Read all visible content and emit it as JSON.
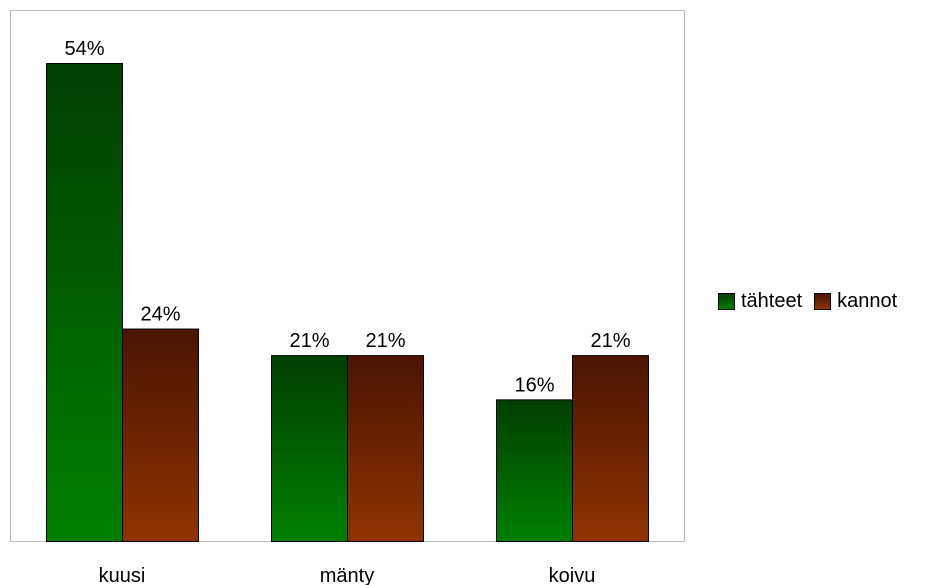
{
  "chart_data": {
    "type": "bar",
    "categories": [
      "kuusi",
      "mänty",
      "koivu"
    ],
    "series": [
      {
        "name": "tähteet",
        "values": [
          54,
          21,
          16
        ],
        "labels": [
          "54%",
          "21%",
          "16%"
        ],
        "color_top": "#003f00",
        "color_bottom": "#008000"
      },
      {
        "name": "kannot",
        "values": [
          24,
          21,
          21
        ],
        "labels": [
          "24%",
          "21%",
          "21%"
        ],
        "color_top": "#4a1400",
        "color_bottom": "#8f3300"
      }
    ],
    "title": "",
    "xlabel": "",
    "ylabel": "",
    "ylim": [
      0,
      60
    ],
    "unit": "%",
    "grid": false,
    "legend_position": "right"
  }
}
